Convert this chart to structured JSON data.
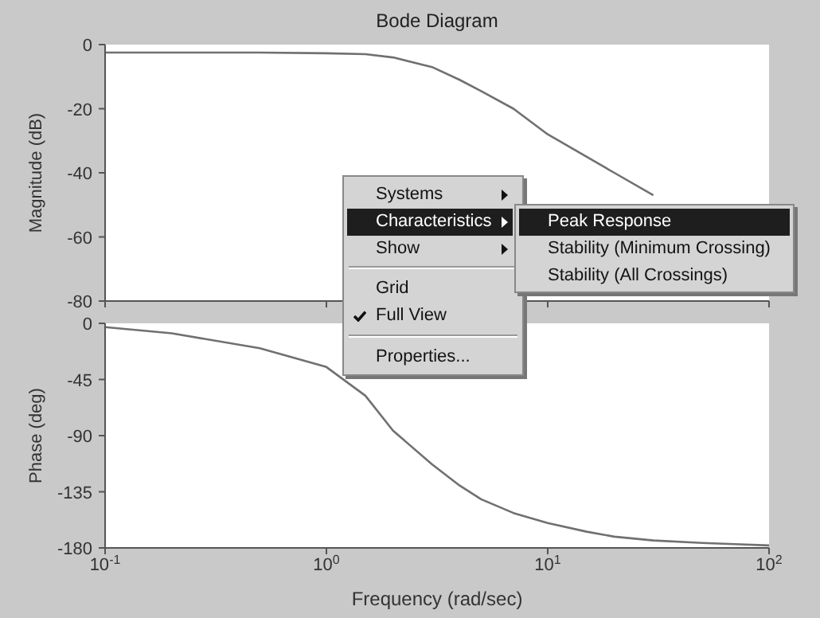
{
  "chart_data": [
    {
      "type": "line",
      "title": "Bode Diagram",
      "ylabel": "Magnitude (dB)",
      "log": "x",
      "tick_labels": "y",
      "x": [
        0.1,
        0.2,
        0.5,
        1,
        1.5,
        2,
        3,
        4,
        5,
        7,
        10,
        15,
        20,
        30
      ],
      "series": [
        {
          "color": "#707070",
          "values": [
            -2.5,
            -2.5,
            -2.5,
            -2.7,
            -3,
            -4,
            -7,
            -11,
            -14.5,
            -20,
            -28,
            -35,
            -40,
            -47
          ]
        }
      ],
      "xlim": [
        0.1,
        100
      ],
      "xticks": [
        {
          "value": 0.1,
          "label": null
        },
        {
          "value": 1,
          "label": null
        },
        {
          "value": 10,
          "label": null
        },
        {
          "value": 100,
          "label": null
        }
      ],
      "ylim": [
        -80,
        0
      ],
      "yticks": [
        -80,
        -60,
        -40,
        -20,
        0
      ],
      "annotations": [
        "Systems",
        "Characteristics",
        "Show",
        "Grid",
        "Full View",
        "Properties...",
        "Peak Response",
        "Stability (Minimum Crossing)",
        "Stability (All Crossings)"
      ]
    },
    {
      "type": "line",
      "ylabel": "Phase (deg)",
      "xlabel": "Frequency (rad/sec)",
      "log": "x",
      "x": [
        0.1,
        0.2,
        0.5,
        1,
        1.5,
        2,
        3,
        4,
        5,
        7,
        10,
        15,
        20,
        30,
        50,
        70,
        100
      ],
      "series": [
        {
          "color": "#707070",
          "values": [
            -3,
            -8,
            -20,
            -35,
            -58,
            -86,
            -113,
            -130,
            -141,
            -152,
            -160,
            -167,
            -171,
            -174,
            -176,
            -177,
            -178
          ]
        }
      ],
      "xlim": [
        0.1,
        100
      ],
      "xticks": [
        {
          "value": 0.1,
          "label": "10$^{-1}$"
        },
        {
          "value": 1,
          "label": "10$^{0}$"
        },
        {
          "value": 10,
          "label": "10$^{1}$"
        },
        {
          "value": 100,
          "label": "10$^{2}$"
        }
      ],
      "ylim": [
        -180,
        0
      ],
      "yticks": [
        -180,
        -135,
        -90,
        -45,
        0
      ]
    }
  ]
}
